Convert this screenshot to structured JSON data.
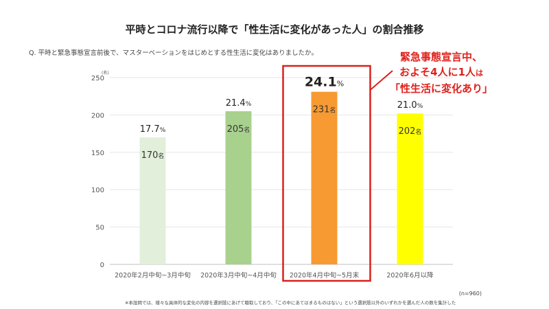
{
  "title": "平時とコロナ流行以降で「性生活に変化があった人」の割合推移",
  "question": "Q. 平時と緊急事態宣言前後で、マスターベーションをはじめとする性生活に変化はありましたか。",
  "sample_note": "(n=960)",
  "footnote": "※本設問では、様々な具体的な変化の内容を選択肢にあげて聴取しており、「この中にあてはまるものはない」という選択肢以外のいずれかを選んだ人の数を集計した",
  "callout": {
    "line1": "緊急事態宣言中、",
    "line2a": "およそ4人に1人",
    "line2b": "は",
    "line3": "「性生活に変化あり」",
    "color": "#e0201b"
  },
  "chart_data": {
    "type": "bar",
    "title": "平時とコロナ流行以降で「性生活に変化があった人」の割合推移",
    "y_unit": "(名)",
    "ylim": [
      0,
      250
    ],
    "yticks": [
      0,
      50,
      100,
      150,
      200,
      250
    ],
    "grid": true,
    "categories": [
      "2020年2月中旬~3月中旬",
      "2020年3月中旬~4月中旬",
      "2020年4月中旬~5月末",
      "2020年6月以降"
    ],
    "values": [
      170,
      205,
      231,
      202
    ],
    "value_suffix": "名",
    "percents": [
      "17.7",
      "21.4",
      "24.1",
      "21.0"
    ],
    "percent_suffix": "%",
    "colors": [
      "#e2efda",
      "#a9d18e",
      "#f79a32",
      "#ffff00"
    ],
    "highlight_index": 2,
    "highlight_color": "#d9201b"
  }
}
